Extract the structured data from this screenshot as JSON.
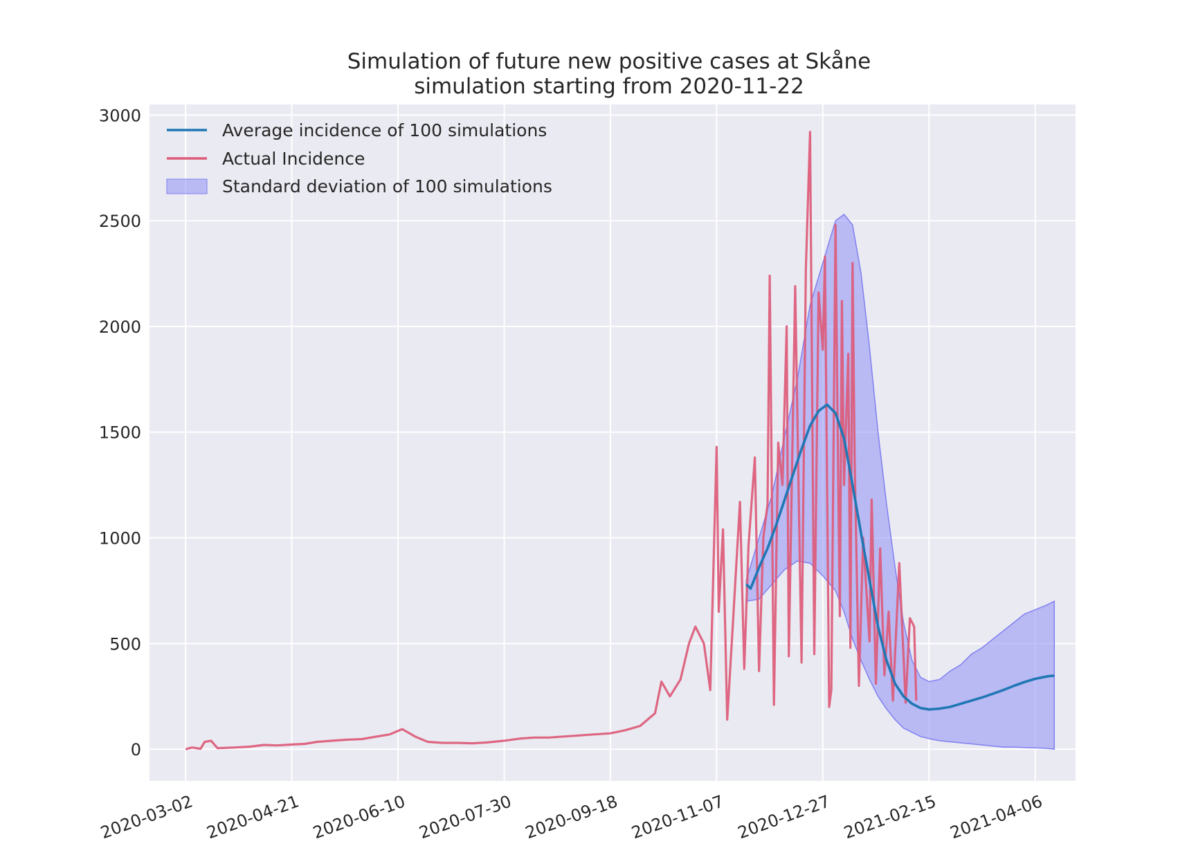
{
  "chart_data": {
    "type": "line",
    "title": "Simulation of future new positive cases at Skåne",
    "subtitle": "simulation starting from 2020-11-22",
    "xlabel": "",
    "ylabel": "",
    "ylim": [
      -150,
      3050
    ],
    "xlim": [
      "2020-02-14",
      "2021-04-25"
    ],
    "grid": true,
    "legend_position": "top-left",
    "x_ticks": [
      "2020-03-02",
      "2020-04-21",
      "2020-06-10",
      "2020-07-30",
      "2020-09-18",
      "2020-11-07",
      "2020-12-27",
      "2021-02-15",
      "2021-04-06"
    ],
    "y_ticks": [
      0,
      500,
      1000,
      1500,
      2000,
      2500,
      3000
    ],
    "colors": {
      "average": "#1f77b4",
      "actual": "#dc5a78",
      "band_fill": "#8f8ff5",
      "band_edge": "#8080f0",
      "plot_background": "#eaeaf2",
      "grid": "#ffffff"
    },
    "series": [
      {
        "name": "Average incidence of 100 simulations",
        "points": [
          [
            "2020-11-21",
            780
          ],
          [
            "2020-11-23",
            760
          ],
          [
            "2020-11-27",
            860
          ],
          [
            "2020-12-01",
            950
          ],
          [
            "2020-12-05",
            1060
          ],
          [
            "2020-12-09",
            1180
          ],
          [
            "2020-12-13",
            1300
          ],
          [
            "2020-12-17",
            1420
          ],
          [
            "2020-12-21",
            1530
          ],
          [
            "2020-12-25",
            1600
          ],
          [
            "2020-12-29",
            1630
          ],
          [
            "2021-01-02",
            1590
          ],
          [
            "2021-01-06",
            1470
          ],
          [
            "2021-01-10",
            1250
          ],
          [
            "2021-01-14",
            1020
          ],
          [
            "2021-01-18",
            800
          ],
          [
            "2021-01-22",
            580
          ],
          [
            "2021-01-26",
            420
          ],
          [
            "2021-01-30",
            310
          ],
          [
            "2021-02-03",
            250
          ],
          [
            "2021-02-07",
            215
          ],
          [
            "2021-02-11",
            195
          ],
          [
            "2021-02-15",
            188
          ],
          [
            "2021-02-20",
            192
          ],
          [
            "2021-02-25",
            200
          ],
          [
            "2021-03-02",
            215
          ],
          [
            "2021-03-07",
            230
          ],
          [
            "2021-03-12",
            245
          ],
          [
            "2021-03-17",
            262
          ],
          [
            "2021-03-22",
            280
          ],
          [
            "2021-03-27",
            300
          ],
          [
            "2021-04-01",
            318
          ],
          [
            "2021-04-06",
            333
          ],
          [
            "2021-04-12",
            345
          ],
          [
            "2021-04-15",
            348
          ]
        ]
      },
      {
        "name": "Actual Incidence",
        "points": [
          [
            "2020-03-02",
            0
          ],
          [
            "2020-03-05",
            8
          ],
          [
            "2020-03-09",
            2
          ],
          [
            "2020-03-11",
            35
          ],
          [
            "2020-03-14",
            40
          ],
          [
            "2020-03-17",
            5
          ],
          [
            "2020-03-25",
            8
          ],
          [
            "2020-04-01",
            12
          ],
          [
            "2020-04-08",
            20
          ],
          [
            "2020-04-14",
            18
          ],
          [
            "2020-04-21",
            22
          ],
          [
            "2020-04-27",
            25
          ],
          [
            "2020-05-03",
            35
          ],
          [
            "2020-05-10",
            40
          ],
          [
            "2020-05-17",
            45
          ],
          [
            "2020-05-24",
            48
          ],
          [
            "2020-05-31",
            60
          ],
          [
            "2020-06-06",
            70
          ],
          [
            "2020-06-12",
            95
          ],
          [
            "2020-06-18",
            60
          ],
          [
            "2020-06-24",
            35
          ],
          [
            "2020-07-01",
            30
          ],
          [
            "2020-07-08",
            30
          ],
          [
            "2020-07-15",
            28
          ],
          [
            "2020-07-22",
            32
          ],
          [
            "2020-07-30",
            40
          ],
          [
            "2020-08-06",
            50
          ],
          [
            "2020-08-13",
            55
          ],
          [
            "2020-08-20",
            55
          ],
          [
            "2020-08-27",
            60
          ],
          [
            "2020-09-03",
            65
          ],
          [
            "2020-09-10",
            70
          ],
          [
            "2020-09-18",
            75
          ],
          [
            "2020-09-25",
            90
          ],
          [
            "2020-10-02",
            110
          ],
          [
            "2020-10-09",
            170
          ],
          [
            "2020-10-12",
            320
          ],
          [
            "2020-10-16",
            250
          ],
          [
            "2020-10-21",
            330
          ],
          [
            "2020-10-25",
            500
          ],
          [
            "2020-10-28",
            580
          ],
          [
            "2020-11-01",
            500
          ],
          [
            "2020-11-04",
            280
          ],
          [
            "2020-11-07",
            1430
          ],
          [
            "2020-11-08",
            650
          ],
          [
            "2020-11-10",
            1040
          ],
          [
            "2020-11-12",
            140
          ],
          [
            "2020-11-15",
            650
          ],
          [
            "2020-11-18",
            1170
          ],
          [
            "2020-11-20",
            380
          ],
          [
            "2020-11-22",
            960
          ],
          [
            "2020-11-25",
            1380
          ],
          [
            "2020-11-27",
            370
          ],
          [
            "2020-11-29",
            1000
          ],
          [
            "2020-12-01",
            1160
          ],
          [
            "2020-12-02",
            2240
          ],
          [
            "2020-12-04",
            210
          ],
          [
            "2020-12-06",
            1450
          ],
          [
            "2020-12-08",
            1250
          ],
          [
            "2020-12-10",
            2000
          ],
          [
            "2020-12-11",
            440
          ],
          [
            "2020-12-14",
            2190
          ],
          [
            "2020-12-17",
            410
          ],
          [
            "2020-12-19",
            2270
          ],
          [
            "2020-12-21",
            2920
          ],
          [
            "2020-12-23",
            450
          ],
          [
            "2020-12-25",
            2160
          ],
          [
            "2020-12-27",
            1890
          ],
          [
            "2020-12-28",
            2330
          ],
          [
            "2020-12-30",
            200
          ],
          [
            "2020-12-31",
            280
          ],
          [
            "2021-01-02",
            2480
          ],
          [
            "2021-01-03",
            1500
          ],
          [
            "2021-01-04",
            630
          ],
          [
            "2021-01-05",
            2120
          ],
          [
            "2021-01-06",
            1250
          ],
          [
            "2021-01-08",
            1870
          ],
          [
            "2021-01-09",
            480
          ],
          [
            "2021-01-10",
            2300
          ],
          [
            "2021-01-11",
            1370
          ],
          [
            "2021-01-13",
            300
          ],
          [
            "2021-01-15",
            1000
          ],
          [
            "2021-01-18",
            510
          ],
          [
            "2021-01-19",
            1180
          ],
          [
            "2021-01-21",
            310
          ],
          [
            "2021-01-23",
            950
          ],
          [
            "2021-01-25",
            350
          ],
          [
            "2021-01-27",
            650
          ],
          [
            "2021-01-29",
            230
          ],
          [
            "2021-02-01",
            880
          ],
          [
            "2021-02-04",
            220
          ],
          [
            "2021-02-06",
            620
          ],
          [
            "2021-02-08",
            580
          ],
          [
            "2021-02-09",
            230
          ]
        ]
      },
      {
        "name": "Standard deviation of 100 simulations",
        "upper": [
          [
            "2020-11-21",
            800
          ],
          [
            "2020-11-27",
            1000
          ],
          [
            "2020-12-03",
            1200
          ],
          [
            "2020-12-09",
            1480
          ],
          [
            "2020-12-15",
            1750
          ],
          [
            "2020-12-21",
            2100
          ],
          [
            "2020-12-27",
            2300
          ],
          [
            "2021-01-02",
            2500
          ],
          [
            "2021-01-06",
            2530
          ],
          [
            "2021-01-10",
            2480
          ],
          [
            "2021-01-14",
            2250
          ],
          [
            "2021-01-18",
            1900
          ],
          [
            "2021-01-22",
            1500
          ],
          [
            "2021-01-26",
            1160
          ],
          [
            "2021-01-30",
            860
          ],
          [
            "2021-02-03",
            600
          ],
          [
            "2021-02-07",
            420
          ],
          [
            "2021-02-11",
            340
          ],
          [
            "2021-02-15",
            320
          ],
          [
            "2021-02-20",
            330
          ],
          [
            "2021-02-25",
            370
          ],
          [
            "2021-03-02",
            400
          ],
          [
            "2021-03-07",
            450
          ],
          [
            "2021-03-12",
            480
          ],
          [
            "2021-03-17",
            520
          ],
          [
            "2021-03-22",
            560
          ],
          [
            "2021-03-27",
            600
          ],
          [
            "2021-04-01",
            640
          ],
          [
            "2021-04-06",
            660
          ],
          [
            "2021-04-11",
            680
          ],
          [
            "2021-04-15",
            700
          ]
        ],
        "lower": [
          [
            "2020-11-21",
            700
          ],
          [
            "2020-11-27",
            710
          ],
          [
            "2020-12-03",
            780
          ],
          [
            "2020-12-09",
            850
          ],
          [
            "2020-12-15",
            890
          ],
          [
            "2020-12-21",
            880
          ],
          [
            "2020-12-27",
            820
          ],
          [
            "2021-01-02",
            750
          ],
          [
            "2021-01-06",
            650
          ],
          [
            "2021-01-10",
            520
          ],
          [
            "2021-01-14",
            420
          ],
          [
            "2021-01-18",
            330
          ],
          [
            "2021-01-22",
            250
          ],
          [
            "2021-01-26",
            190
          ],
          [
            "2021-01-30",
            140
          ],
          [
            "2021-02-03",
            100
          ],
          [
            "2021-02-07",
            80
          ],
          [
            "2021-02-11",
            60
          ],
          [
            "2021-02-15",
            50
          ],
          [
            "2021-02-20",
            40
          ],
          [
            "2021-02-25",
            35
          ],
          [
            "2021-03-02",
            30
          ],
          [
            "2021-03-07",
            25
          ],
          [
            "2021-03-12",
            20
          ],
          [
            "2021-03-17",
            15
          ],
          [
            "2021-03-22",
            10
          ],
          [
            "2021-03-27",
            10
          ],
          [
            "2021-04-01",
            8
          ],
          [
            "2021-04-06",
            6
          ],
          [
            "2021-04-11",
            4
          ],
          [
            "2021-04-15",
            0
          ]
        ]
      }
    ]
  }
}
